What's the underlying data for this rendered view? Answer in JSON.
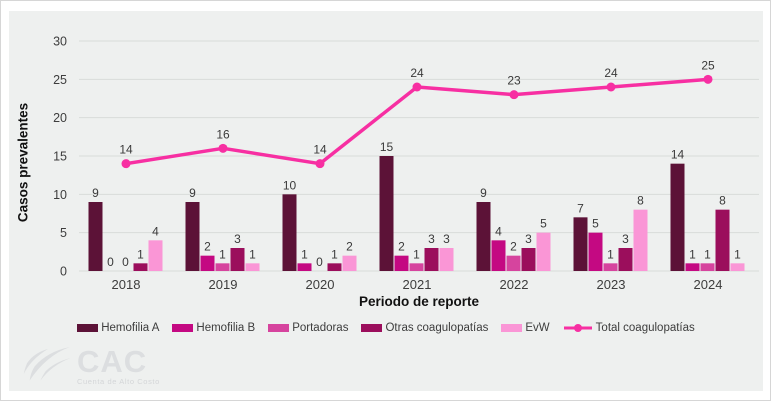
{
  "chart_data": {
    "type": "bar",
    "title": "",
    "xlabel": "Periodo de reporte",
    "ylabel": "Casos prevalentes",
    "ylim": [
      0,
      30
    ],
    "yticks": [
      0,
      5,
      10,
      15,
      20,
      25,
      30
    ],
    "grid": true,
    "legend_position": "bottom",
    "categories": [
      "2018",
      "2019",
      "2020",
      "2021",
      "2022",
      "2023",
      "2024"
    ],
    "series": [
      {
        "name": "Hemofilia A",
        "kind": "bar",
        "color": "#5C1237",
        "values": [
          9,
          9,
          10,
          15,
          9,
          7,
          14
        ]
      },
      {
        "name": "Hemofilia B",
        "kind": "bar",
        "color": "#C40982",
        "values": [
          0,
          2,
          1,
          2,
          4,
          5,
          1
        ]
      },
      {
        "name": "Portadoras",
        "kind": "bar",
        "color": "#D6449E",
        "values": [
          0,
          1,
          0,
          1,
          2,
          1,
          1
        ]
      },
      {
        "name": "Otras coagulopatías",
        "kind": "bar",
        "color": "#9B0E5C",
        "values": [
          1,
          3,
          1,
          3,
          3,
          3,
          8
        ]
      },
      {
        "name": "EvW",
        "kind": "bar",
        "color": "#FA96D6",
        "values": [
          4,
          1,
          2,
          3,
          5,
          8,
          1
        ]
      },
      {
        "name": "Total coagulopatías",
        "kind": "line",
        "color": "#F72FA2",
        "values": [
          14,
          16,
          14,
          24,
          23,
          24,
          25
        ]
      }
    ],
    "colors": {
      "panel_background": "#eef0ef",
      "gridline": "#d8dbd9",
      "label_text": "#3a3a3a"
    }
  },
  "footer": {
    "logo_text": "CAC",
    "logo_subtext": "Cuenta de Alto Costo"
  }
}
